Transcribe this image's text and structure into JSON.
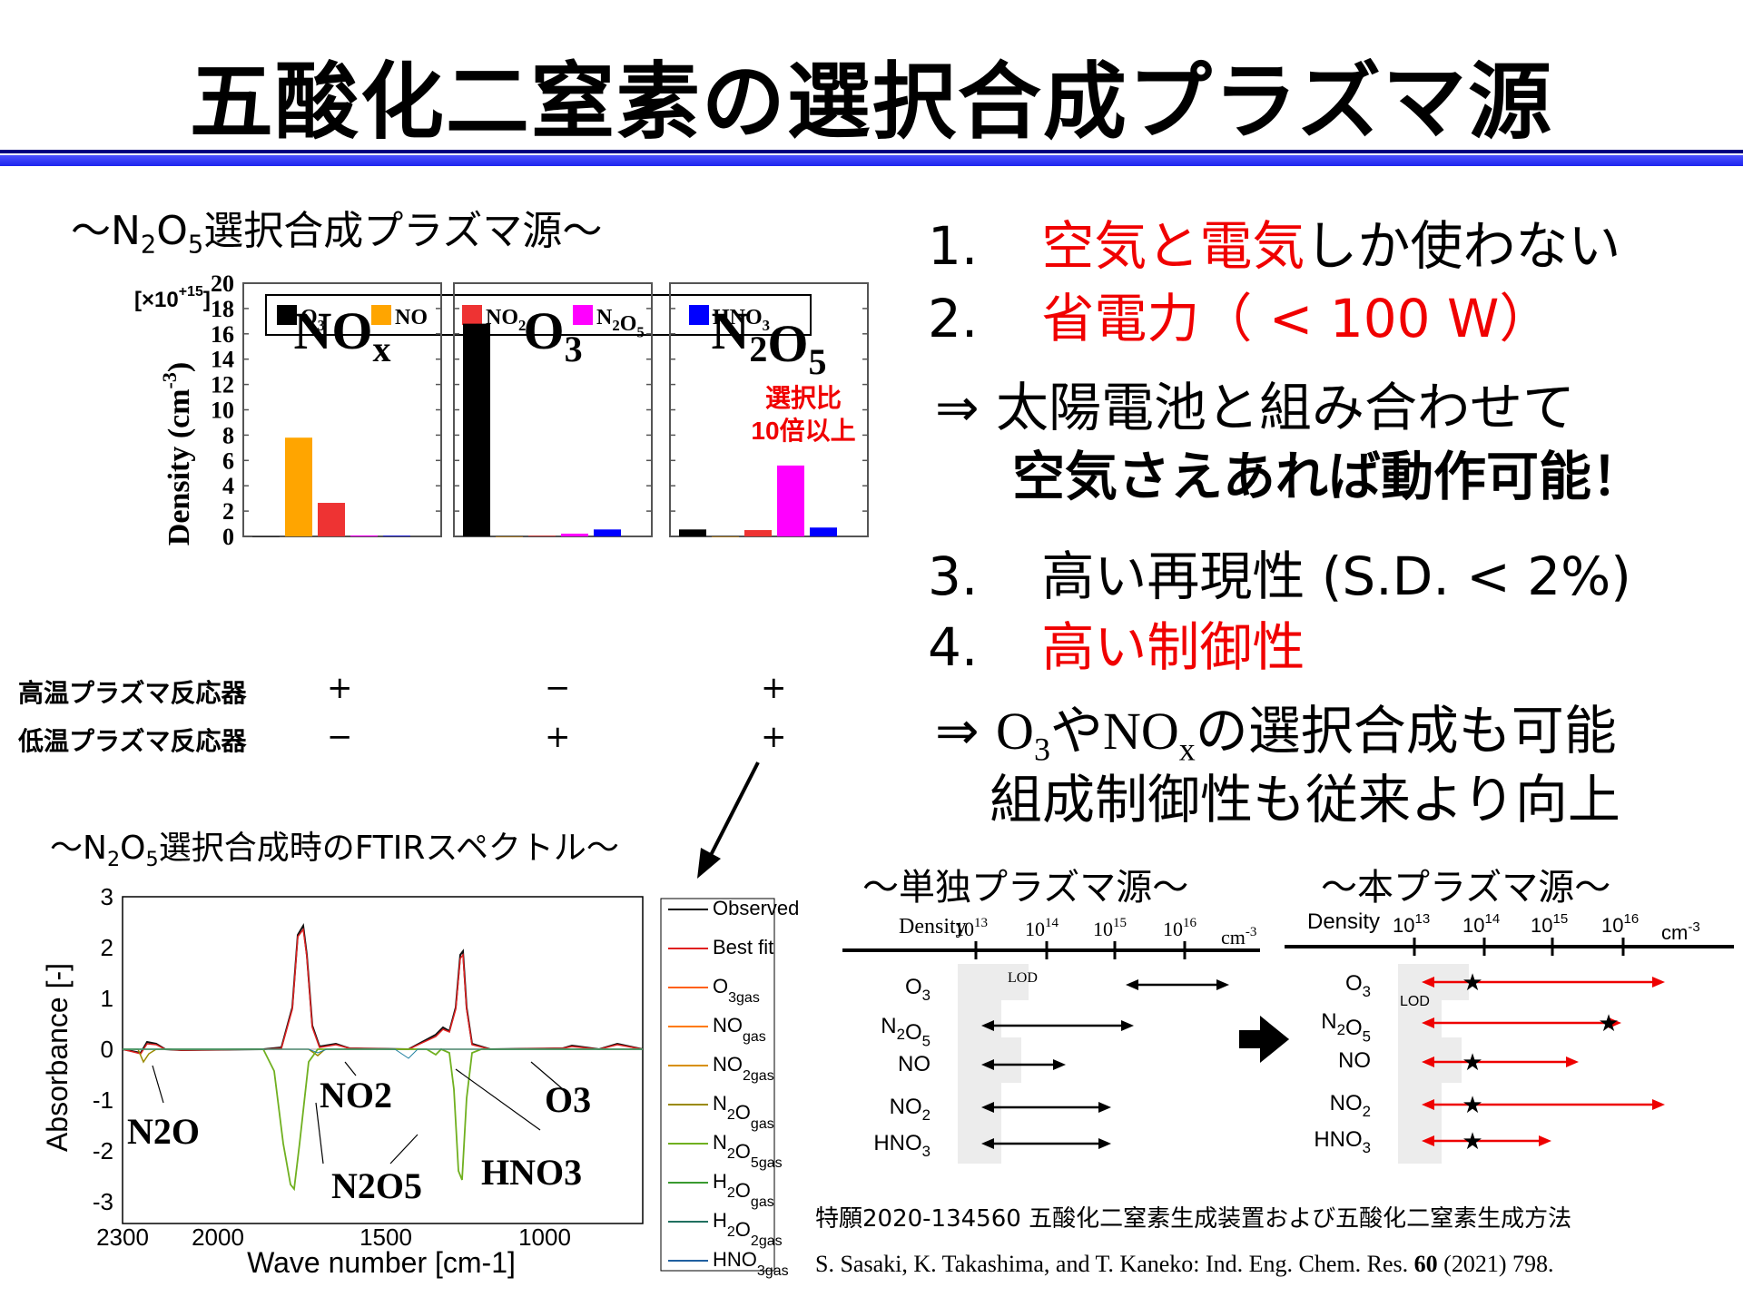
{
  "title": "五酸化二窒素の選択合成プラズマ源",
  "left_heading": {
    "pre": "〜N",
    "s1": "2",
    "mid": "O",
    "s2": "5",
    "post": "選択合成プラズマ源〜"
  },
  "chart_data": {
    "type": "bar",
    "scale_label": {
      "pre": "[×10",
      "sup": "+15",
      "post": "]"
    },
    "ylabel": "Density (cm-3)",
    "ylim": [
      0,
      20
    ],
    "yticks": [
      0,
      2,
      4,
      6,
      8,
      10,
      12,
      14,
      16,
      18,
      20
    ],
    "legend": [
      {
        "name": "O3",
        "color": "#000000"
      },
      {
        "name": "NO",
        "color": "#ffa500"
      },
      {
        "name": "NO2",
        "color": "#ee3333"
      },
      {
        "name": "N2O5",
        "color": "#ff00ff"
      },
      {
        "name": "HNO3",
        "color": "#0000ff"
      }
    ],
    "panels": [
      {
        "label_main": "NO",
        "label_sub": "x",
        "values": [
          0.0,
          7.8,
          2.65,
          0.08,
          0.05
        ]
      },
      {
        "label_main": "O",
        "label_sub": "3",
        "values": [
          16.8,
          0.0,
          0.05,
          0.22,
          0.55
        ]
      },
      {
        "label_main": "N2O5",
        "label_sub": "",
        "values": [
          0.55,
          0.0,
          0.5,
          5.6,
          0.7
        ],
        "annotation": [
          "選択比",
          "10倍以上"
        ]
      }
    ]
  },
  "reactors": {
    "row1": {
      "label": "高温プラズマ反応器",
      "signs": [
        "+",
        "−",
        "+"
      ]
    },
    "row2": {
      "label": "低温プラズマ反応器",
      "signs": [
        "−",
        "+",
        "+"
      ]
    }
  },
  "points": {
    "p1": {
      "num": "1.",
      "red": "空気と電気",
      "rest": "しか使わない"
    },
    "p2": {
      "num": "2.",
      "red": "省電力",
      "rest": "（ < 100 W）"
    },
    "arrow1_l1": "⇒ 太陽電池と組み合わせて",
    "arrow1_l2": "空気さえあれば動作可能！",
    "p3": {
      "num": "3.",
      "text": "高い再現性 (S.D. < 2%)"
    },
    "p4": {
      "num": "4.",
      "red": "高い制御性"
    },
    "arrow2_l1": {
      "pre": "⇒ ",
      "o": "O",
      "o_sub": "3",
      "ya": "や",
      "nox": "NO",
      "nox_sub": "x",
      "post": "の選択合成も可能"
    },
    "arrow2_l2": "組成制御性も従来より向上"
  },
  "ftir": {
    "heading": {
      "pre": "〜N",
      "s1": "2",
      "mid": "O",
      "s2": "5",
      "post": "選択合成時のFTIRスペクトル〜"
    },
    "xlabel": "Wave number [cm-1]",
    "ylabel": "Absorbance [-]",
    "xticks": [
      "2300",
      "2000",
      "1500",
      "1000"
    ],
    "yticks": [
      "3",
      "2",
      "1",
      "0",
      "-1",
      "-2",
      "-3"
    ],
    "legend": [
      "Observed",
      "Best fit",
      "O3gas",
      "NOgas",
      "NO2gas",
      "N2Ogas",
      "N2O5gas",
      "H2Ogas",
      "H2O2gas",
      "HNO3gas"
    ],
    "annotations": [
      "N2O",
      "NO2",
      "N2O5",
      "HNO3",
      "O3"
    ]
  },
  "scale_left": {
    "heading": "〜単独プラズマ源〜",
    "density": "Density",
    "unit": "cm-3",
    "lod": "LOD",
    "species": [
      "O3",
      "N2O5",
      "NO",
      "NO2",
      "HNO3"
    ]
  },
  "scale_right": {
    "heading": "〜本プラズマ源〜",
    "density": "Density",
    "unit": "cm-3",
    "lod": "LOD",
    "species": [
      "O3",
      "N2O5",
      "NO",
      "NO2",
      "HNO3"
    ]
  },
  "references": {
    "patent": "特願2020-134560 五酸化二窒素生成装置および五酸化二窒素生成方法",
    "paper_pre": "S. Sasaki, K. Takashima, and T. Kaneko: Ind. Eng. Chem. Res. ",
    "paper_vol": "60",
    "paper_post": " (2021) 798."
  }
}
